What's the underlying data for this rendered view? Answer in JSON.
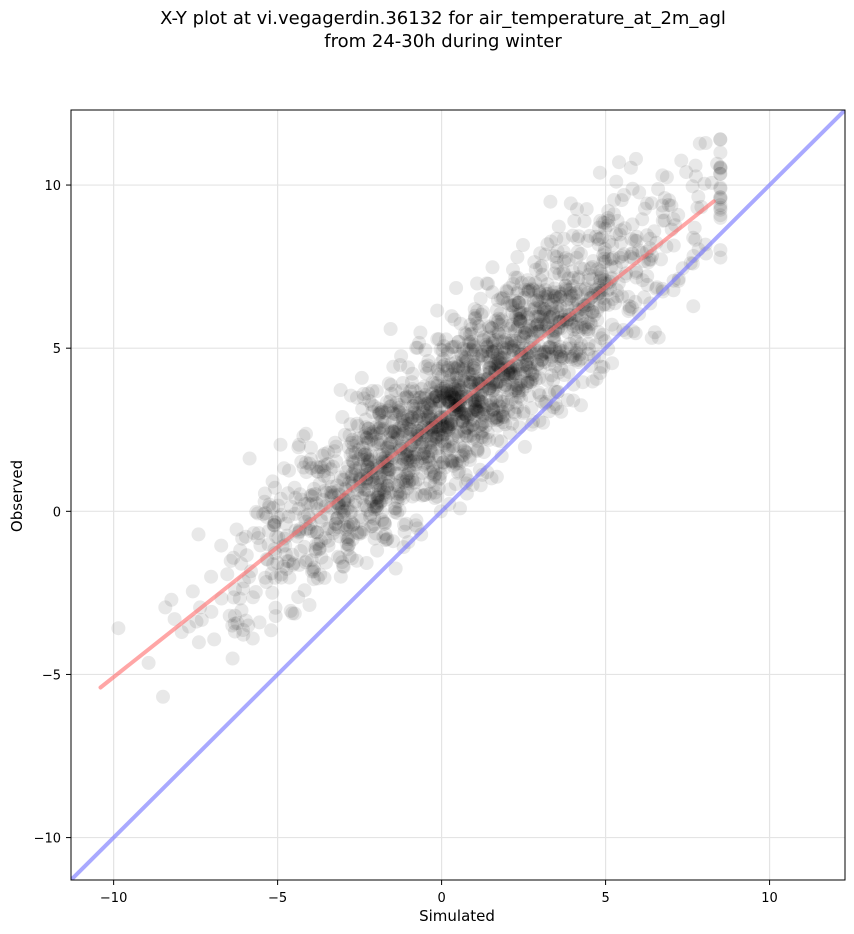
{
  "chart_data": {
    "type": "scatter",
    "title": "X-Y plot at vi.vegagerdin.36132 for air_temperature_at_2m_agl",
    "subtitle": "from 24-30h during winter",
    "xlabel": "Simulated",
    "ylabel": "Observed",
    "xlim": [
      -11.3,
      12.3
    ],
    "ylim": [
      -11.3,
      12.3
    ],
    "xticks": [
      -10,
      -5,
      0,
      5,
      10
    ],
    "yticks": [
      -10,
      -5,
      0,
      5,
      10
    ],
    "xtick_labels": [
      "−10",
      "−5",
      "0",
      "5",
      "10"
    ],
    "ytick_labels": [
      "−10",
      "−5",
      "0",
      "5",
      "10"
    ],
    "grid": true,
    "colors": {
      "points": "#000000",
      "fit_line": "#ff6b6b",
      "identity_line": "#7b7bff"
    },
    "fit_line": {
      "x": [
        -10.4,
        8.3
      ],
      "y": [
        -5.4,
        9.5
      ]
    },
    "identity_line": {
      "x": [
        -11.3,
        12.3
      ],
      "y": [
        -11.3,
        12.3
      ]
    },
    "points": {
      "count": 2000,
      "relationship": "observed ≈ 0.8 × simulated + 2.9, residual sd ≈ 1.25",
      "x_mean": 0.6,
      "x_sd": 3.3,
      "x_range": [
        -10.5,
        8.5
      ],
      "y_range": [
        -7.0,
        11.4
      ]
    }
  }
}
